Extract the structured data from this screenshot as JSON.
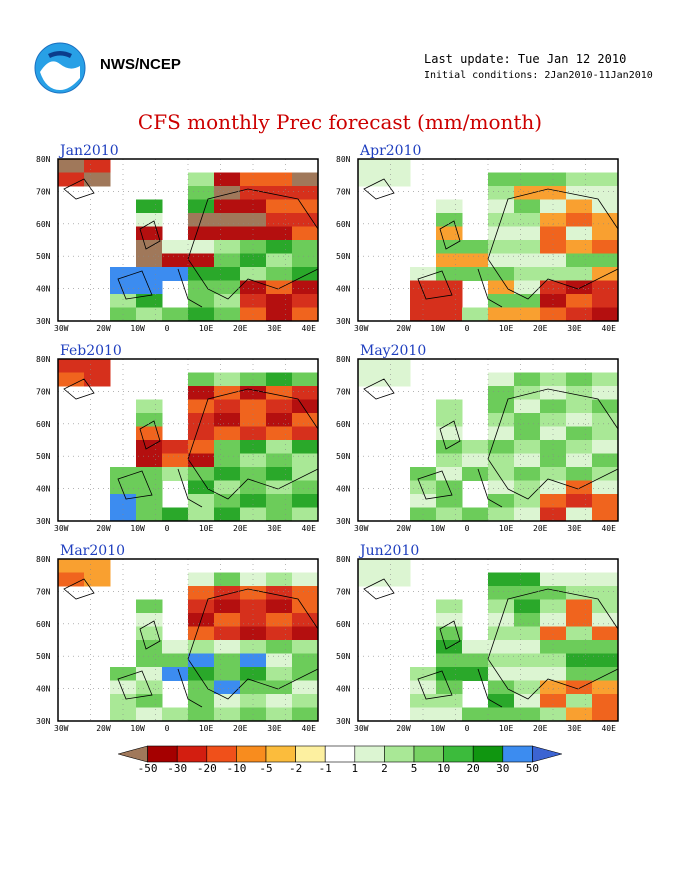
{
  "header": {
    "org": "NWS/NCEP",
    "last_update": "Last update: Tue Jan 12 2010",
    "initial_conditions": "Initial conditions: 2Jan2010-11Jan2010"
  },
  "title": "CFS monthly Prec forecast (mm/month)",
  "lat_labels": [
    "80N",
    "70N",
    "60N",
    "50N",
    "40N",
    "30N"
  ],
  "lon_labels": [
    "30W",
    "20W",
    "10W",
    "0",
    "10E",
    "20E",
    "30E",
    "40E"
  ],
  "panels": [
    {
      "month": "Jan2010"
    },
    {
      "month": "Apr2010"
    },
    {
      "month": "Feb2010"
    },
    {
      "month": "May2010"
    },
    {
      "month": "Mar2010"
    },
    {
      "month": "Jun2010"
    }
  ],
  "colorbar": {
    "labels": [
      "-50",
      "-30",
      "-20",
      "-10",
      "-5",
      "-2",
      "-1",
      "1",
      "2",
      "5",
      "10",
      "20",
      "30",
      "50"
    ],
    "colors": [
      "#a0785a",
      "#a50000",
      "#d31e10",
      "#f0501a",
      "#f88c1e",
      "#fbbc3c",
      "#fdf0a0",
      "#ffffff",
      "#dcf5d2",
      "#a9e896",
      "#78d264",
      "#3cbb3c",
      "#109610",
      "#3c8cf0",
      "#3c64d2"
    ]
  },
  "map_colors": {
    "brown": "#a0785a",
    "darkred": "#b40f0f",
    "red": "#d6301c",
    "orange": "#f0641e",
    "lorange": "#f9a030",
    "yellow": "#fbd05a",
    "pale": "#dcf5d2",
    "lgreen": "#a9e896",
    "green": "#6ccc5a",
    "dgreen": "#2aa82a",
    "blue": "#3c8cf0"
  }
}
